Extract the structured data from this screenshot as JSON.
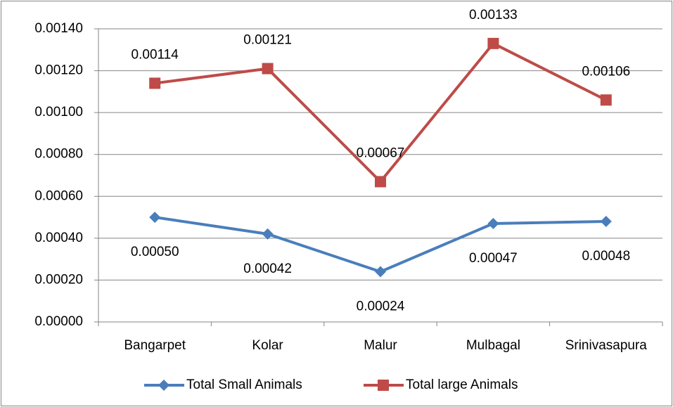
{
  "chart_data": {
    "type": "line",
    "categories": [
      "Bangarpet",
      "Kolar",
      "Malur",
      "Mulbagal",
      "Srinivasapura"
    ],
    "series": [
      {
        "name": "Total Small Animals",
        "color": "#4a7ebb",
        "marker": "diamond",
        "values": [
          0.0005,
          0.00042,
          0.00024,
          0.00047,
          0.00048
        ],
        "value_labels": [
          "0.00050",
          "0.00042",
          "0.00024",
          "0.00047",
          "0.00048"
        ]
      },
      {
        "name": "Total large Animals",
        "color": "#be4b48",
        "marker": "square",
        "values": [
          0.00114,
          0.00121,
          0.00067,
          0.00133,
          0.00106
        ],
        "value_labels": [
          "0.00114",
          "0.00121",
          "0.00067",
          "0.00133",
          "0.00106"
        ]
      }
    ],
    "ylim": [
      0,
      0.0014
    ],
    "yticks": [
      {
        "value": 0,
        "label": "0.00000"
      },
      {
        "value": 0.0002,
        "label": "0.00020"
      },
      {
        "value": 0.0004,
        "label": "0.00040"
      },
      {
        "value": 0.0006,
        "label": "0.00060"
      },
      {
        "value": 0.0008,
        "label": "0.00080"
      },
      {
        "value": 0.001,
        "label": "0.00100"
      },
      {
        "value": 0.0012,
        "label": "0.00120"
      },
      {
        "value": 0.0014,
        "label": "0.00140"
      }
    ],
    "grid": true,
    "legend": "bottom"
  }
}
